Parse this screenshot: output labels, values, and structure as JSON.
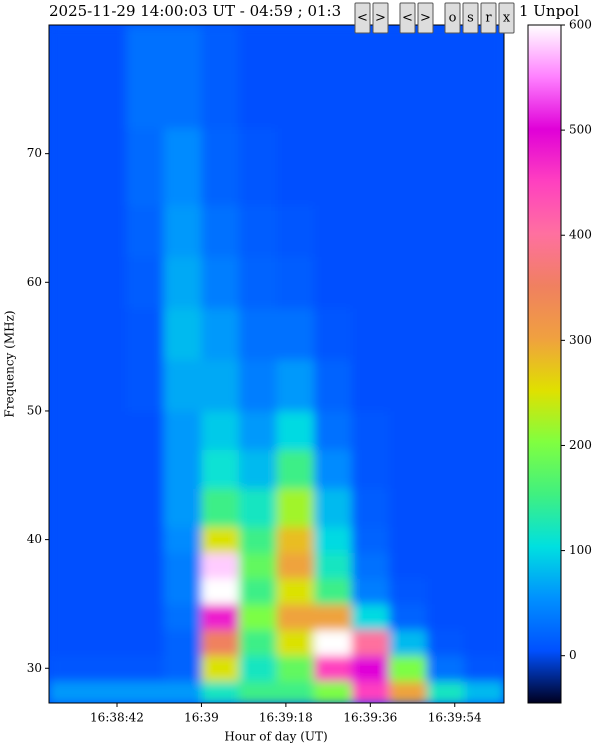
{
  "chart_data": {
    "type": "heatmap",
    "title": "2025-11-29 14:00:03 UT - 04:59 ; 01:3",
    "title_end": "1 Unpol",
    "x_label": "Hour of day (UT)",
    "y_label": "Frequency (MHz)",
    "xlim": [
      59907.5,
      60004.5
    ],
    "xticks": [
      {
        "value": 59922,
        "label": "16:38:42"
      },
      {
        "value": 59940,
        "label": "16:39"
      },
      {
        "value": 59958,
        "label": "16:39:18"
      },
      {
        "value": 59976,
        "label": "16:39:36"
      },
      {
        "value": 59994,
        "label": "16:39:54"
      }
    ],
    "ylim": [
      27.3,
      80
    ],
    "yticks": [
      30,
      40,
      50,
      60,
      70
    ],
    "xbins": [
      59907.5,
      59916,
      59924,
      59932,
      59940,
      59948,
      59956,
      59964,
      59972,
      59980,
      59988,
      59996,
      60004.5
    ],
    "ybins": [
      27.3,
      29,
      31,
      33,
      35,
      37,
      39,
      41,
      44,
      47,
      50,
      54,
      58,
      62,
      66,
      72,
      80
    ],
    "z": [
      [
        60,
        60,
        60,
        60,
        120,
        150,
        150,
        200,
        450,
        300,
        120,
        80
      ],
      [
        10,
        10,
        10,
        20,
        250,
        120,
        180,
        450,
        500,
        200,
        30,
        10
      ],
      [
        5,
        5,
        5,
        20,
        350,
        150,
        250,
        600,
        400,
        80,
        10,
        5
      ],
      [
        5,
        5,
        5,
        30,
        480,
        200,
        300,
        300,
        100,
        20,
        5,
        5
      ],
      [
        5,
        5,
        5,
        40,
        600,
        150,
        250,
        150,
        40,
        10,
        5,
        5
      ],
      [
        5,
        5,
        5,
        40,
        580,
        180,
        300,
        120,
        30,
        5,
        5,
        5
      ],
      [
        5,
        5,
        5,
        50,
        250,
        150,
        280,
        100,
        20,
        5,
        5,
        5
      ],
      [
        5,
        5,
        5,
        60,
        150,
        120,
        220,
        80,
        15,
        5,
        5,
        5
      ],
      [
        5,
        5,
        5,
        60,
        110,
        80,
        150,
        50,
        10,
        5,
        5,
        5
      ],
      [
        5,
        5,
        5,
        60,
        90,
        60,
        100,
        30,
        10,
        5,
        5,
        5
      ],
      [
        5,
        5,
        10,
        70,
        70,
        40,
        60,
        20,
        5,
        5,
        5,
        5
      ],
      [
        5,
        5,
        10,
        80,
        60,
        30,
        30,
        10,
        5,
        5,
        5,
        5
      ],
      [
        5,
        5,
        15,
        70,
        40,
        20,
        15,
        5,
        5,
        5,
        5,
        5
      ],
      [
        5,
        5,
        20,
        60,
        30,
        15,
        10,
        5,
        5,
        5,
        5,
        5
      ],
      [
        5,
        5,
        25,
        50,
        20,
        10,
        5,
        5,
        5,
        5,
        5,
        5
      ],
      [
        5,
        5,
        30,
        30,
        15,
        5,
        5,
        5,
        5,
        5,
        5,
        5
      ]
    ],
    "clim": [
      -45,
      600
    ],
    "cticks": [
      0,
      100,
      200,
      300,
      400,
      500,
      600
    ],
    "colormap": [
      "#000020",
      "#0050ff",
      "#0090ff",
      "#00e0e0",
      "#40f080",
      "#80ff40",
      "#e0e000",
      "#f0a040",
      "#f08060",
      "#ff70a0",
      "#ff40c0",
      "#e000d8",
      "#ff80ff",
      "#ffffff"
    ]
  },
  "toolbar": [
    "<",
    ">",
    "<",
    ">",
    "o",
    "s",
    "r",
    "x"
  ]
}
